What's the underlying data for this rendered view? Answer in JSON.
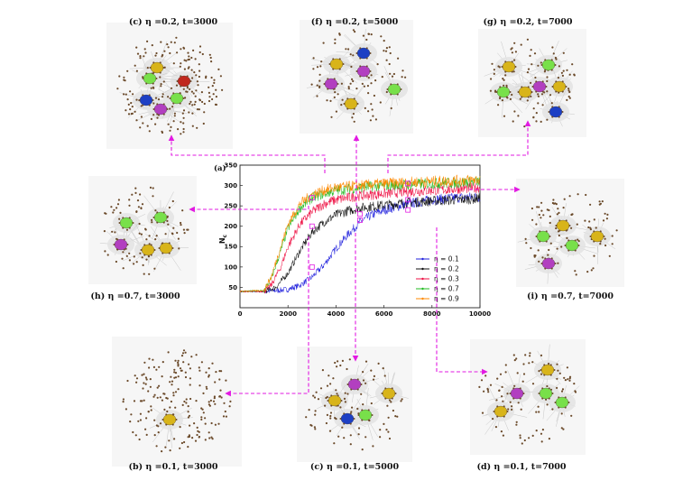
{
  "figure": {
    "panel_label": "(a)",
    "ylabel": "N",
    "ylabel_sub": "c",
    "panels": [
      {
        "id": "c1",
        "label": "(c) η =0.2, t=3000"
      },
      {
        "id": "f",
        "label": "(f) η =0.2, t=5000"
      },
      {
        "id": "g",
        "label": "(g) η =0.2, t=7000"
      },
      {
        "id": "h",
        "label": "(h) η =0.7, t=3000"
      },
      {
        "id": "i",
        "label": "(i) η =0.7, t=7000"
      },
      {
        "id": "b",
        "label": "(b) η =0.1, t=3000"
      },
      {
        "id": "c2",
        "label": "(c) η =0.1, t=5000"
      },
      {
        "id": "d",
        "label": "(d) η =0.1, t=7000"
      }
    ]
  },
  "chart_data": {
    "type": "line",
    "title": "",
    "xlabel": "",
    "ylabel": "Nc",
    "xlim": [
      0,
      10000
    ],
    "ylim": [
      0,
      350
    ],
    "xticks": [
      0,
      2000,
      4000,
      6000,
      8000,
      10000
    ],
    "yticks": [
      50,
      100,
      150,
      200,
      250,
      300,
      350
    ],
    "grid": false,
    "legend_position": "center-right",
    "series": [
      {
        "name": "η = 0.1",
        "color": "#2222dd",
        "x": [
          0,
          1000,
          1500,
          2000,
          2500,
          3000,
          3500,
          4000,
          4500,
          5000,
          5500,
          6000,
          7000,
          8000,
          9000,
          10000
        ],
        "values": [
          40,
          40,
          42,
          45,
          55,
          75,
          105,
          145,
          180,
          210,
          228,
          240,
          255,
          265,
          270,
          272
        ]
      },
      {
        "name": "η = 0.2",
        "color": "#111111",
        "x": [
          0,
          1000,
          1500,
          2000,
          2500,
          3000,
          3500,
          4000,
          4500,
          5000,
          6000,
          7000,
          8000,
          9000,
          10000
        ],
        "values": [
          40,
          40,
          50,
          85,
          140,
          185,
          210,
          228,
          238,
          245,
          252,
          258,
          262,
          265,
          268
        ]
      },
      {
        "name": "η = 0.3",
        "color": "#ee1144",
        "x": [
          0,
          1000,
          1300,
          1700,
          2000,
          2500,
          3000,
          3500,
          4000,
          5000,
          6000,
          7000,
          8000,
          9000,
          10000
        ],
        "values": [
          40,
          40,
          55,
          100,
          150,
          205,
          235,
          255,
          265,
          275,
          280,
          285,
          288,
          292,
          295
        ]
      },
      {
        "name": "η = 0.7",
        "color": "#22bb22",
        "x": [
          0,
          1000,
          1300,
          1700,
          2000,
          2500,
          3000,
          3500,
          4000,
          5000,
          6000,
          7000,
          8000,
          9000,
          10000
        ],
        "values": [
          40,
          42,
          70,
          140,
          195,
          245,
          270,
          280,
          288,
          295,
          300,
          302,
          305,
          307,
          310
        ]
      },
      {
        "name": "η = 0.9",
        "color": "#ff8800",
        "x": [
          0,
          1000,
          1300,
          1700,
          2000,
          2500,
          3000,
          3500,
          4000,
          5000,
          6000,
          7000,
          8000,
          9000,
          10000
        ],
        "values": [
          40,
          42,
          75,
          150,
          205,
          255,
          278,
          288,
          295,
          300,
          305,
          308,
          310,
          312,
          315
        ]
      }
    ]
  },
  "colors": {
    "arrow": "#e21ae2",
    "node": "#6b4a2a",
    "cluster_blue": "#1d3fc4",
    "cluster_purple": "#b23fc0",
    "cluster_green": "#78e04a",
    "cluster_yellow": "#d8b41a",
    "cluster_red": "#c0281e"
  }
}
